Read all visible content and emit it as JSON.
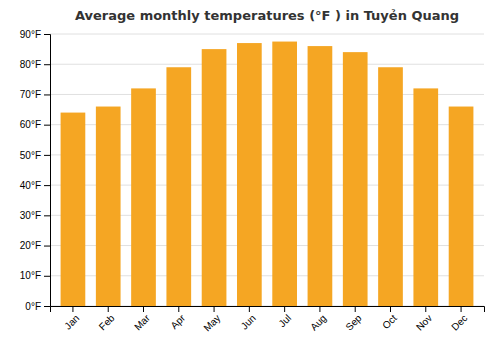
{
  "chart_data": {
    "type": "bar",
    "title": "Average monthly temperatures (°F ) in Tuyẻn Quang",
    "categories": [
      "Jan",
      "Feb",
      "Mar",
      "Apr",
      "May",
      "Jun",
      "Jul",
      "Aug",
      "Sep",
      "Oct",
      "Nov",
      "Dec"
    ],
    "values": [
      64,
      66,
      72,
      79,
      85,
      87,
      87.5,
      86,
      84,
      79,
      72,
      66
    ],
    "color": "#F5A623",
    "ylim": [
      0,
      90
    ],
    "yticks": [
      {
        "value": 0,
        "label": "0°F"
      },
      {
        "value": 10,
        "label": "10°F"
      },
      {
        "value": 20,
        "label": "20°F"
      },
      {
        "value": 30,
        "label": "30°F"
      },
      {
        "value": 40,
        "label": "40°F"
      },
      {
        "value": 50,
        "label": "50°F"
      },
      {
        "value": 60,
        "label": "60°F"
      },
      {
        "value": 70,
        "label": "70°F"
      },
      {
        "value": 80,
        "label": "80°F"
      },
      {
        "value": 90,
        "label": "90°F"
      }
    ],
    "grid": true
  }
}
